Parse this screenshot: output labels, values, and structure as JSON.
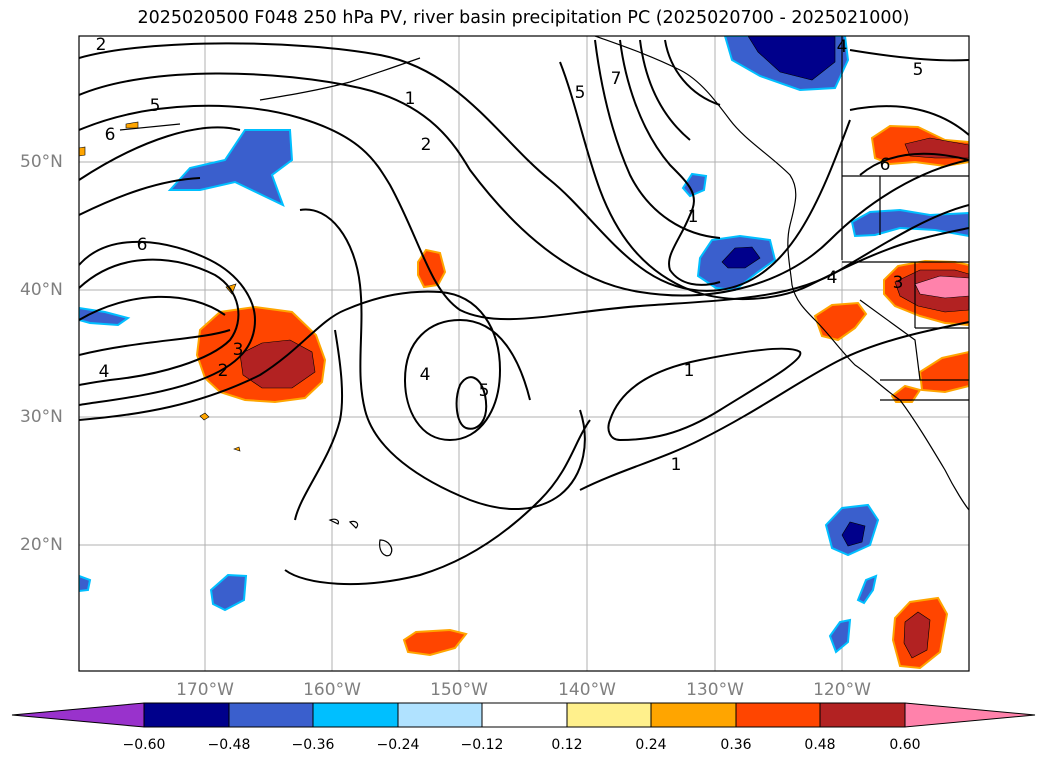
{
  "title": "2025020500 F048 250 hPa PV, river basin precipitation PC (2025020700 - 2025021000)",
  "lat_labels": [
    "50°N",
    "40°N",
    "30°N",
    "20°N"
  ],
  "lon_labels": [
    "170°W",
    "160°W",
    "150°W",
    "140°W",
    "130°W",
    "120°W"
  ],
  "colorbar": {
    "ticks": [
      "−0.60",
      "−0.48",
      "−0.36",
      "−0.24",
      "−0.12",
      "0.12",
      "0.24",
      "0.36",
      "0.48",
      "0.60"
    ],
    "colors": [
      "#9932cc",
      "#00008b",
      "#3a5fcd",
      "#00bfff",
      "#b0e2ff",
      "#ffffff",
      "#fff08c",
      "#ffa500",
      "#ff4500",
      "#b22222",
      "#ff82ab"
    ]
  },
  "contour_labels": [
    "2",
    "5",
    "6",
    "1",
    "2",
    "5",
    "7",
    "6",
    "1",
    "4",
    "3",
    "2",
    "4",
    "5",
    "1",
    "1",
    "4",
    "3",
    "6",
    "5",
    "4"
  ]
}
